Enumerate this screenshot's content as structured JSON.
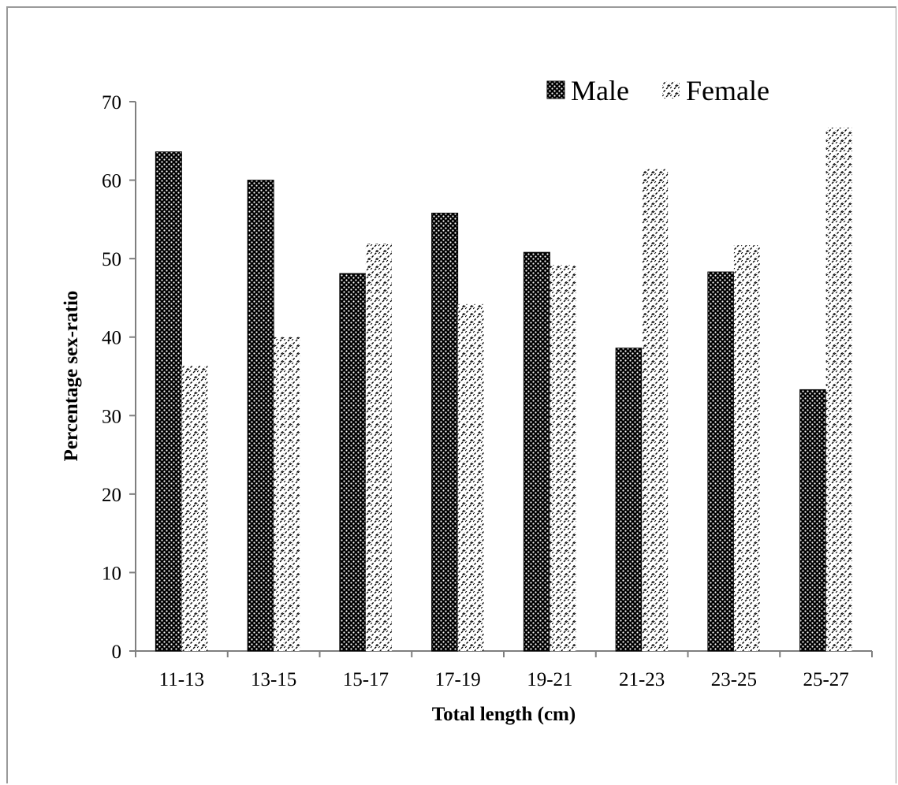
{
  "chart_data": {
    "type": "bar",
    "categories": [
      "11-13",
      "13-15",
      "15-17",
      "17-19",
      "19-21",
      "21-23",
      "23-25",
      "25-27"
    ],
    "series": [
      {
        "name": "Male",
        "values": [
          63.6,
          60.0,
          48.1,
          55.8,
          50.8,
          38.6,
          48.3,
          33.3
        ],
        "pattern": "dots-dark"
      },
      {
        "name": "Female",
        "values": [
          36.4,
          40.0,
          51.9,
          44.2,
          49.2,
          61.4,
          51.7,
          66.7
        ],
        "pattern": "diagonal-hatch"
      }
    ],
    "xlabel": "Total length (cm)",
    "ylabel": "Percentage sex-ratio",
    "ylim": [
      0,
      70
    ],
    "yticks": [
      "0",
      "10",
      "20",
      "30",
      "40",
      "50",
      "60",
      "70"
    ],
    "grid": false,
    "legend_position": "top-right"
  }
}
